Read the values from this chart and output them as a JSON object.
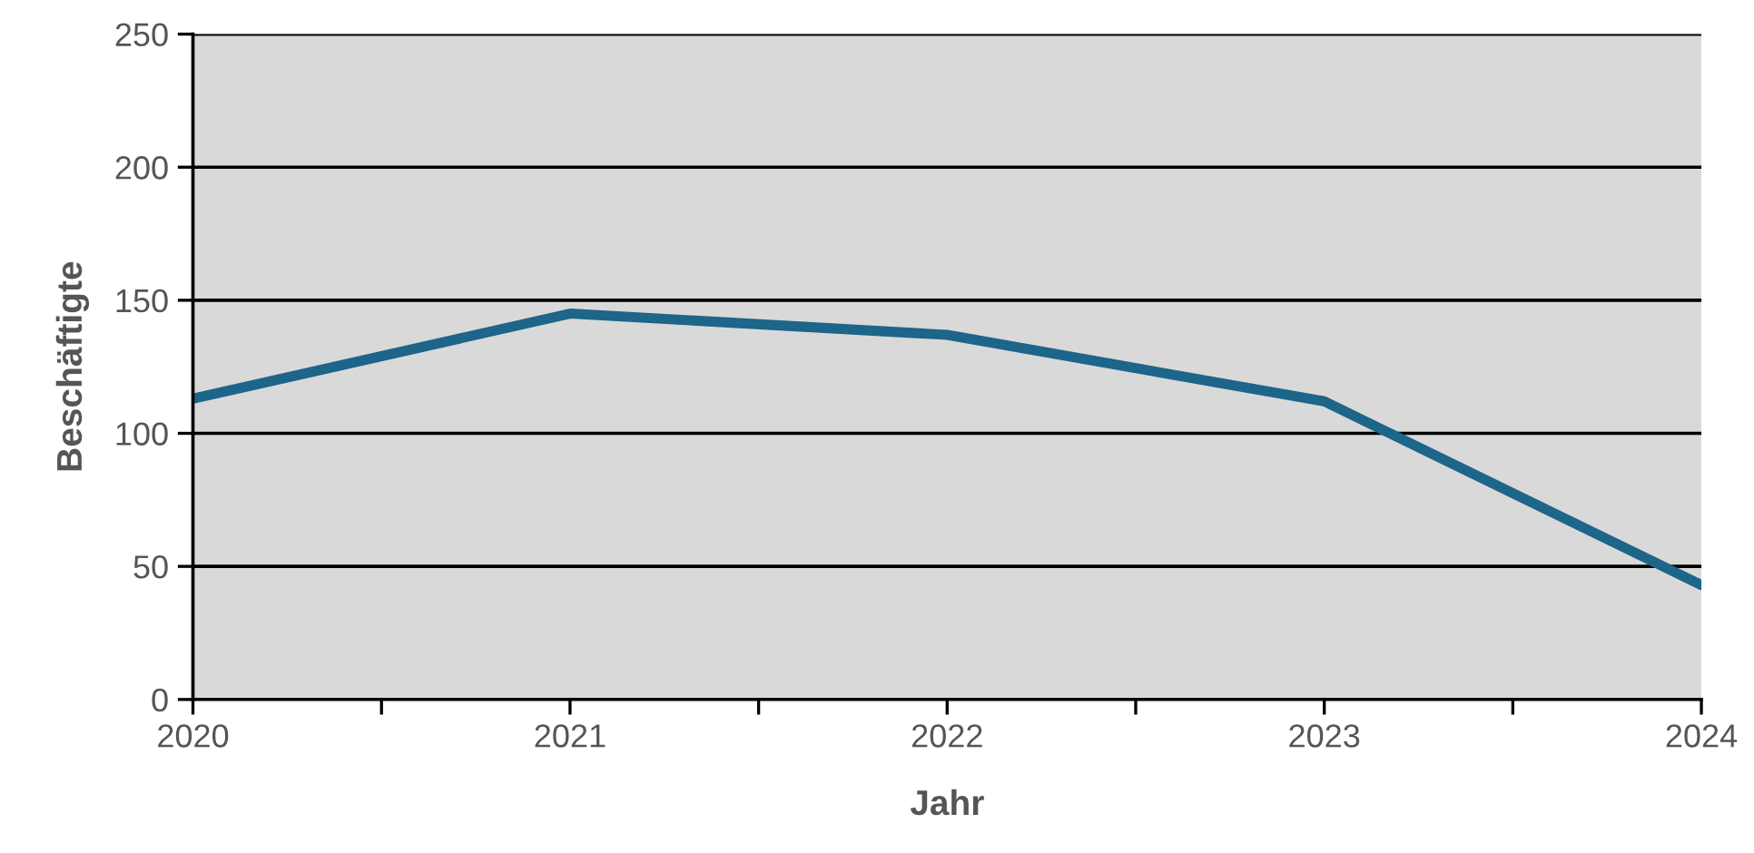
{
  "chart_data": {
    "type": "line",
    "xlabel": "Jahr",
    "ylabel": "Beschäftigte",
    "x": [
      2020,
      2021,
      2022,
      2023,
      2024
    ],
    "series": [
      {
        "color": "#1d6589",
        "values": [
          113,
          145,
          137,
          112,
          43
        ]
      }
    ],
    "xlim": [
      2020,
      2024
    ],
    "xticks": [
      2020,
      {
        "value": 2020.5,
        "label": null
      },
      2021,
      {
        "value": 2021.5,
        "label": null
      },
      2022,
      {
        "value": 2022.5,
        "label": null
      },
      2023,
      {
        "value": 2023.5,
        "label": null
      },
      2024
    ],
    "ylim": [
      0,
      250
    ],
    "yticks": [
      0,
      50,
      100,
      150,
      200,
      250
    ],
    "grid": "y",
    "marker": "none",
    "line_style": "solid"
  }
}
